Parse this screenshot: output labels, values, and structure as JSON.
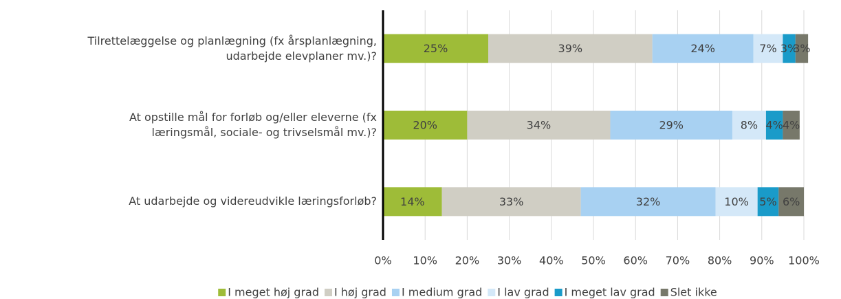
{
  "chart_data": {
    "type": "stacked-barh",
    "categories": [
      "Tilrettelæggelse og planlægning (fx årsplanlægning,\nudarbejde elevplaner mv.)?",
      "At opstille mål for forløb og/eller eleverne (fx\nlæringsmål, sociale- og trivselsmål mv.)?",
      "At udarbejde og videreudvikle læringsforløb?"
    ],
    "series": [
      {
        "name": "I meget høj grad",
        "color": "#9ebc38",
        "values": [
          25,
          20,
          14
        ],
        "value_labels": [
          "25%",
          "20%",
          "14%"
        ]
      },
      {
        "name": "I høj grad",
        "color": "#d0cec4",
        "values": [
          39,
          34,
          33
        ],
        "value_labels": [
          "39%",
          "34%",
          "33%"
        ]
      },
      {
        "name": "I medium grad",
        "color": "#a8d1f2",
        "values": [
          24,
          29,
          32
        ],
        "value_labels": [
          "24%",
          "29%",
          "32%"
        ]
      },
      {
        "name": "I lav grad",
        "color": "#d4e8f8",
        "values": [
          7,
          8,
          10
        ],
        "value_labels": [
          "7%",
          "8%",
          "10%"
        ]
      },
      {
        "name": "I meget lav grad",
        "color": "#1a9bc9",
        "values": [
          3,
          4,
          5
        ],
        "value_labels": [
          "3%",
          "4%",
          "5%"
        ]
      },
      {
        "name": "Slet ikke",
        "color": "#77786a",
        "values": [
          3,
          4,
          6
        ],
        "value_labels": [
          "3%",
          "4%",
          "6%"
        ]
      }
    ],
    "xlim": [
      0,
      100
    ],
    "xticks": [
      {
        "value": 0,
        "label": "0%"
      },
      {
        "value": 10,
        "label": "10%"
      },
      {
        "value": 20,
        "label": "20%"
      },
      {
        "value": 30,
        "label": "30%"
      },
      {
        "value": 40,
        "label": "40%"
      },
      {
        "value": 50,
        "label": "50%"
      },
      {
        "value": 60,
        "label": "60%"
      },
      {
        "value": 70,
        "label": "70%"
      },
      {
        "value": 80,
        "label": "80%"
      },
      {
        "value": 90,
        "label": "90%"
      },
      {
        "value": 100,
        "label": "100%"
      }
    ],
    "grid": true,
    "legend": "bottom"
  }
}
